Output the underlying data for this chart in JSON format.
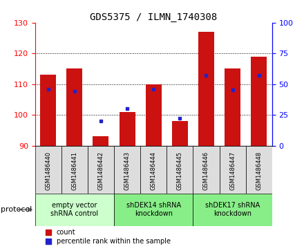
{
  "title": "GDS5375 / ILMN_1740308",
  "samples": [
    "GSM1486440",
    "GSM1486441",
    "GSM1486442",
    "GSM1486443",
    "GSM1486444",
    "GSM1486445",
    "GSM1486446",
    "GSM1486447",
    "GSM1486448"
  ],
  "counts": [
    113,
    115,
    93,
    101,
    110,
    98,
    127,
    115,
    119
  ],
  "percentiles": [
    46,
    44,
    20,
    30,
    46,
    22,
    57,
    45,
    57
  ],
  "ylim_left": [
    90,
    130
  ],
  "ylim_right": [
    0,
    100
  ],
  "yticks_left": [
    90,
    100,
    110,
    120,
    130
  ],
  "yticks_right": [
    0,
    25,
    50,
    75,
    100
  ],
  "bar_color": "#cc1111",
  "dot_color": "#2222cc",
  "protocol_groups": [
    {
      "label": "empty vector\nshRNA control",
      "start": 0,
      "end": 3,
      "color": "#ccffcc"
    },
    {
      "label": "shDEK14 shRNA\nknockdown",
      "start": 3,
      "end": 6,
      "color": "#88ee88"
    },
    {
      "label": "shDEK17 shRNA\nknockdown",
      "start": 6,
      "end": 9,
      "color": "#88ee88"
    }
  ],
  "legend_count_label": "count",
  "legend_pct_label": "percentile rank within the sample",
  "protocol_label": "protocol",
  "gridline_ticks": [
    100,
    110,
    120
  ],
  "sample_label_color": "#333333",
  "title_fontsize": 10,
  "axis_fontsize": 8,
  "label_fontsize": 7,
  "bar_width": 0.6
}
